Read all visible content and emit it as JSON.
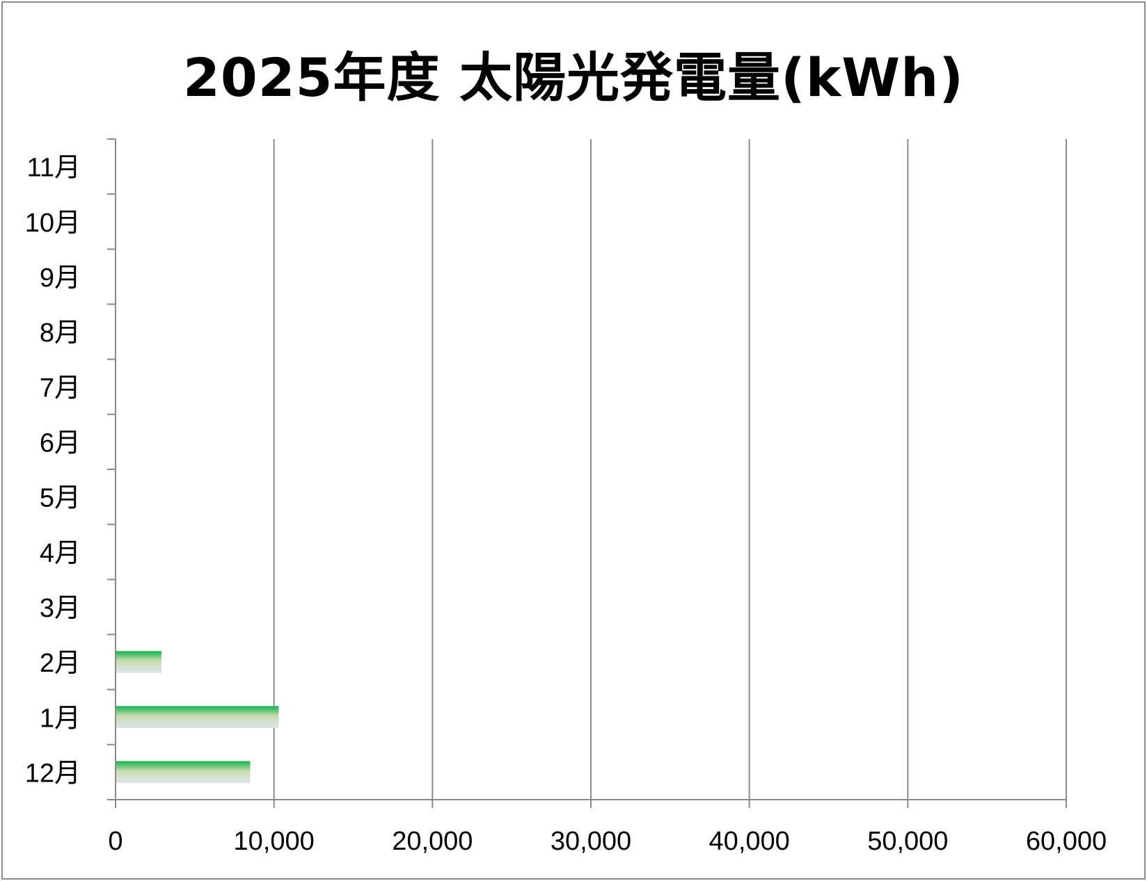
{
  "chart_data": {
    "type": "bar",
    "orientation": "horizontal",
    "title": "2025年度 太陽光発電量(kWh)",
    "categories": [
      "12月",
      "1月",
      "2月",
      "3月",
      "4月",
      "5月",
      "6月",
      "7月",
      "8月",
      "9月",
      "10月",
      "11月"
    ],
    "values": [
      8500,
      10300,
      2900,
      null,
      null,
      null,
      null,
      null,
      null,
      null,
      null,
      null
    ],
    "xlim": [
      0,
      60000
    ],
    "xticks": [
      0,
      10000,
      20000,
      30000,
      40000,
      50000,
      60000
    ],
    "xtick_labels": [
      "0",
      "10,000",
      "20,000",
      "30,000",
      "40,000",
      "50,000",
      "60,000"
    ],
    "grid": "vertical",
    "legend": "none",
    "colors": {
      "bar_top": "#16b14f",
      "bar_mid": "#c8dcb0",
      "bar_bottom": "#dfe3ec",
      "gridline": "#8a8a8a",
      "frame": "#8c8c8c"
    }
  }
}
